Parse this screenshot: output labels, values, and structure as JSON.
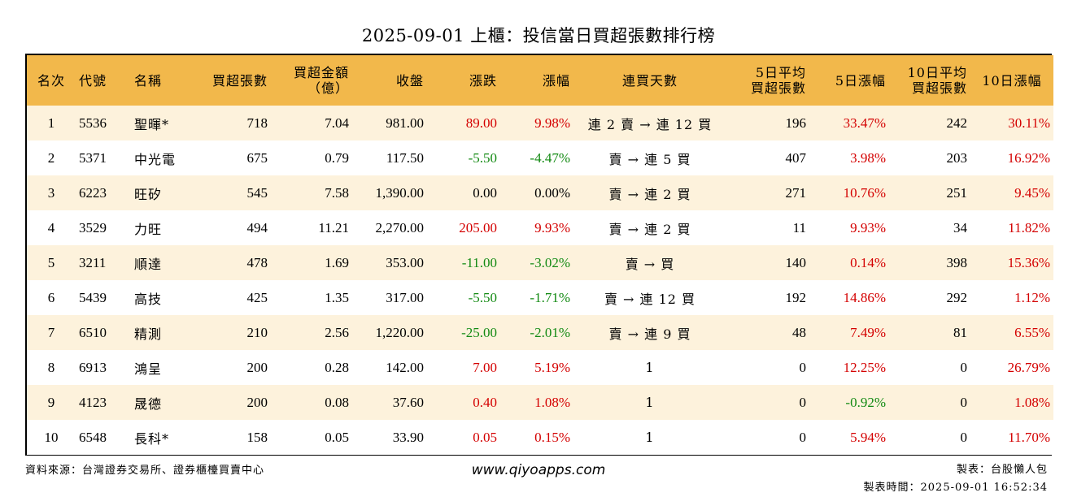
{
  "title": "2025-09-01 上櫃：投信當日買超張數排行榜",
  "columns": [
    {
      "label": "名次"
    },
    {
      "label": "代號"
    },
    {
      "label": "名稱"
    },
    {
      "label": "買超張數"
    },
    {
      "label": "買超金額",
      "label2": "（億）"
    },
    {
      "label": "收盤"
    },
    {
      "label": "漲跌"
    },
    {
      "label": "漲幅"
    },
    {
      "label": "連買天數"
    },
    {
      "label": "5日平均",
      "label2": "買超張數"
    },
    {
      "label": "5日漲幅"
    },
    {
      "label": "10日平均",
      "label2": "買超張數"
    },
    {
      "label": "10日漲幅"
    }
  ],
  "rows": [
    {
      "rank": "1",
      "code": "5536",
      "name": "聖暉*",
      "buy_lots": "718",
      "buy_amount": "7.04",
      "close": "981.00",
      "change": "89.00",
      "change_color": "red",
      "pct": "9.98%",
      "pct_color": "red",
      "streak": "連 2 賣 → 連 12 買",
      "avg5": "196",
      "pct5": "33.47%",
      "pct5_color": "red",
      "avg10": "242",
      "pct10": "30.11%",
      "pct10_color": "red"
    },
    {
      "rank": "2",
      "code": "5371",
      "name": "中光電",
      "buy_lots": "675",
      "buy_amount": "0.79",
      "close": "117.50",
      "change": "-5.50",
      "change_color": "green",
      "pct": "-4.47%",
      "pct_color": "green",
      "streak": "賣 → 連 5 買",
      "avg5": "407",
      "pct5": "3.98%",
      "pct5_color": "red",
      "avg10": "203",
      "pct10": "16.92%",
      "pct10_color": "red"
    },
    {
      "rank": "3",
      "code": "6223",
      "name": "旺矽",
      "buy_lots": "545",
      "buy_amount": "7.58",
      "close": "1,390.00",
      "change": "0.00",
      "change_color": "black",
      "pct": "0.00%",
      "pct_color": "black",
      "streak": "賣 → 連 2 買",
      "avg5": "271",
      "pct5": "10.76%",
      "pct5_color": "red",
      "avg10": "251",
      "pct10": "9.45%",
      "pct10_color": "red"
    },
    {
      "rank": "4",
      "code": "3529",
      "name": "力旺",
      "buy_lots": "494",
      "buy_amount": "11.21",
      "close": "2,270.00",
      "change": "205.00",
      "change_color": "red",
      "pct": "9.93%",
      "pct_color": "red",
      "streak": "賣 → 連 2 買",
      "avg5": "11",
      "pct5": "9.93%",
      "pct5_color": "red",
      "avg10": "34",
      "pct10": "11.82%",
      "pct10_color": "red"
    },
    {
      "rank": "5",
      "code": "3211",
      "name": "順達",
      "buy_lots": "478",
      "buy_amount": "1.69",
      "close": "353.00",
      "change": "-11.00",
      "change_color": "green",
      "pct": "-3.02%",
      "pct_color": "green",
      "streak": "賣 → 買",
      "avg5": "140",
      "pct5": "0.14%",
      "pct5_color": "red",
      "avg10": "398",
      "pct10": "15.36%",
      "pct10_color": "red"
    },
    {
      "rank": "6",
      "code": "5439",
      "name": "高技",
      "buy_lots": "425",
      "buy_amount": "1.35",
      "close": "317.00",
      "change": "-5.50",
      "change_color": "green",
      "pct": "-1.71%",
      "pct_color": "green",
      "streak": "賣 → 連 12 買",
      "avg5": "192",
      "pct5": "14.86%",
      "pct5_color": "red",
      "avg10": "292",
      "pct10": "1.12%",
      "pct10_color": "red"
    },
    {
      "rank": "7",
      "code": "6510",
      "name": "精測",
      "buy_lots": "210",
      "buy_amount": "2.56",
      "close": "1,220.00",
      "change": "-25.00",
      "change_color": "green",
      "pct": "-2.01%",
      "pct_color": "green",
      "streak": "賣 → 連 9 買",
      "avg5": "48",
      "pct5": "7.49%",
      "pct5_color": "red",
      "avg10": "81",
      "pct10": "6.55%",
      "pct10_color": "red"
    },
    {
      "rank": "8",
      "code": "6913",
      "name": "鴻呈",
      "buy_lots": "200",
      "buy_amount": "0.28",
      "close": "142.00",
      "change": "7.00",
      "change_color": "red",
      "pct": "5.19%",
      "pct_color": "red",
      "streak": "1",
      "avg5": "0",
      "pct5": "12.25%",
      "pct5_color": "red",
      "avg10": "0",
      "pct10": "26.79%",
      "pct10_color": "red"
    },
    {
      "rank": "9",
      "code": "4123",
      "name": "晟德",
      "buy_lots": "200",
      "buy_amount": "0.08",
      "close": "37.60",
      "change": "0.40",
      "change_color": "red",
      "pct": "1.08%",
      "pct_color": "red",
      "streak": "1",
      "avg5": "0",
      "pct5": "-0.92%",
      "pct5_color": "green",
      "avg10": "0",
      "pct10": "1.08%",
      "pct10_color": "red"
    },
    {
      "rank": "10",
      "code": "6548",
      "name": "長科*",
      "buy_lots": "158",
      "buy_amount": "0.05",
      "close": "33.90",
      "change": "0.05",
      "change_color": "red",
      "pct": "0.15%",
      "pct_color": "red",
      "streak": "1",
      "avg5": "0",
      "pct5": "5.94%",
      "pct5_color": "red",
      "avg10": "0",
      "pct10": "11.70%",
      "pct10_color": "red"
    }
  ],
  "footer": {
    "source": "資料來源：台灣證券交易所、證券櫃檯買賣中心",
    "url": "www.qiyoapps.com",
    "maker": "製表：台股懶人包",
    "time": "製表時間：2025-09-01 16:52:34"
  },
  "colors": {
    "header_bg": "#f2b84b",
    "stripe": "#fdf2dc",
    "up": "#d40000",
    "down": "#138a13"
  }
}
